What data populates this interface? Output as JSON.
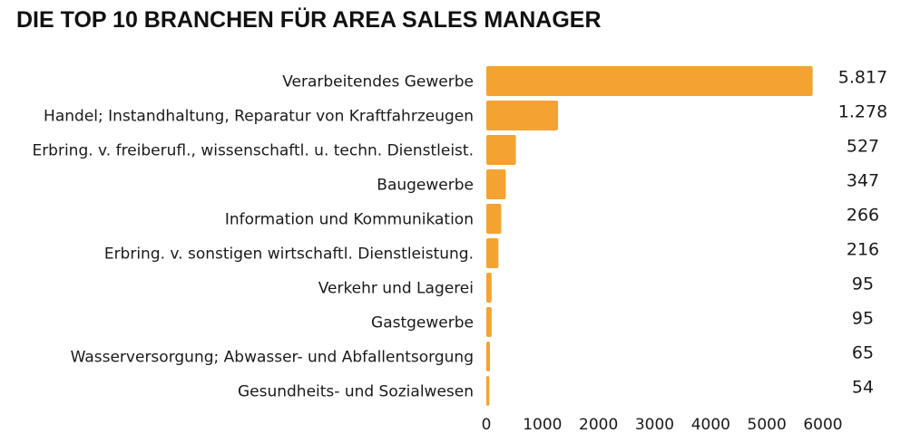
{
  "chart_data": {
    "type": "bar",
    "orientation": "horizontal",
    "title": "DIE TOP 10 BRANCHEN FÜR AREA SALES MANAGER",
    "categories": [
      "Verarbeitendes Gewerbe",
      "Handel; Instandhaltung, Reparatur von Kraftfahrzeugen",
      "Erbring. v. freiberufl., wissenschaftl. u. techn. Dienstleist.",
      "Baugewerbe",
      "Information und Kommunikation",
      "Erbring. v. sonstigen wirtschaftl. Dienstleistung.",
      "Verkehr und Lagerei",
      "Gastgewerbe",
      "Wasserversorgung; Abwasser- und Abfallentsorgung",
      "Gesundheits- und Sozialwesen"
    ],
    "values": [
      5817,
      1278,
      527,
      347,
      266,
      216,
      95,
      95,
      65,
      54
    ],
    "value_labels": [
      "5.817",
      "1.278",
      "527",
      "347",
      "266",
      "216",
      "95",
      "95",
      "65",
      "54"
    ],
    "xlim": [
      0,
      6000
    ],
    "xticks": [
      0,
      1000,
      2000,
      3000,
      4000,
      5000,
      6000
    ],
    "xtick_labels": [
      "0",
      "1000",
      "2000",
      "3000",
      "4000",
      "5000",
      "6000"
    ],
    "xlabel": "",
    "ylabel": "",
    "grid": false,
    "bar_color": "#F4A332"
  }
}
